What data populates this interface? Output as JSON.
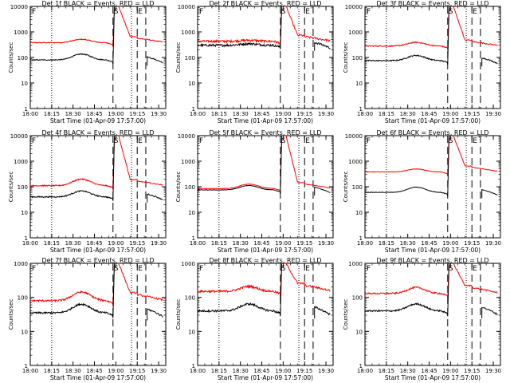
{
  "figure": {
    "x_tick_labels_row1": [
      "18:00",
      "18:15",
      "18:30",
      "18:45",
      "19:00",
      "19:15",
      "19:30"
    ],
    "x_tick_labels_row2": [
      "18:00",
      "18:15",
      "18:30",
      "18:45",
      "19:00",
      "19:15",
      "19:30"
    ],
    "x_tick_labels_row3": [
      "18:00",
      "18:15",
      "18:30",
      "18:45",
      "19:00",
      "19:15",
      "19:30"
    ],
    "y_tick_labels": [
      "1",
      "10",
      "100",
      "1000",
      "10000"
    ],
    "ylabel": "Counts/sec",
    "xlabel": "Start Time (01-Apr-09 17:57:00)",
    "marker_labels": {
      "left": "F",
      "mid": "S",
      "right": "E"
    },
    "colors": {
      "events": "#000000",
      "lld": "#ff0000"
    }
  },
  "chart_data": [
    {
      "type": "line",
      "detector": "1f",
      "title": "Det 1f BLACK = Events, RED = LLD",
      "xlabel": "Start Time (01-Apr-09 17:57:00)",
      "ylabel": "Counts/sec",
      "xlim": [
        "18:00",
        "19:35"
      ],
      "ylim": [
        1,
        10000
      ],
      "yscale": "log",
      "events_base": 80,
      "events_bump": 1.7,
      "lld_base": 380,
      "lld_bump": 1.35,
      "noise": 0.04,
      "series": [
        {
          "name": "Events",
          "color": "#000000"
        },
        {
          "name": "LLD",
          "color": "#ff0000"
        }
      ]
    },
    {
      "type": "line",
      "detector": "2f",
      "title": "Det 2f BLACK = Events, RED = LLD",
      "xlabel": "Start Time (01-Apr-09 17:57:00)",
      "ylabel": "Counts/sec",
      "xlim": [
        "18:00",
        "19:35"
      ],
      "ylim": [
        1,
        10000
      ],
      "yscale": "log",
      "events_base": 300,
      "events_bump": 1.15,
      "lld_base": 430,
      "lld_bump": 1.1,
      "noise": 0.1,
      "series": [
        {
          "name": "Events",
          "color": "#000000"
        },
        {
          "name": "LLD",
          "color": "#ff0000"
        }
      ]
    },
    {
      "type": "line",
      "detector": "3f",
      "title": "Det 3f BLACK = Events, RED = LLD",
      "xlabel": "Start Time (01-Apr-09 17:57:00)",
      "ylabel": "Counts/sec",
      "xlim": [
        "18:00",
        "19:35"
      ],
      "ylim": [
        1,
        10000
      ],
      "yscale": "log",
      "events_base": 75,
      "events_bump": 1.6,
      "lld_base": 280,
      "lld_bump": 1.4,
      "noise": 0.05,
      "series": [
        {
          "name": "Events",
          "color": "#000000"
        },
        {
          "name": "LLD",
          "color": "#ff0000"
        }
      ]
    },
    {
      "type": "line",
      "detector": "4f",
      "title": "Det 4f BLACK = Events, RED = LLD",
      "xlabel": "Start Time (01-Apr-09 17:57:00)",
      "ylabel": "Counts/sec",
      "xlim": [
        "18:00",
        "19:35"
      ],
      "ylim": [
        1,
        10000
      ],
      "yscale": "log",
      "events_base": 40,
      "events_bump": 1.7,
      "lld_base": 110,
      "lld_bump": 1.8,
      "noise": 0.05,
      "series": [
        {
          "name": "Events",
          "color": "#000000"
        },
        {
          "name": "LLD",
          "color": "#ff0000"
        }
      ]
    },
    {
      "type": "line",
      "detector": "5f",
      "title": "Det 5f BLACK = Events, RED = LLD",
      "xlabel": "Start Time (01-Apr-09 17:57:00)",
      "ylabel": "Counts/sec",
      "xlim": [
        "18:00",
        "19:35"
      ],
      "ylim": [
        1,
        10000
      ],
      "yscale": "log",
      "events_base": 75,
      "events_bump": 1.5,
      "lld_base": 85,
      "lld_bump": 1.5,
      "noise": 0.02,
      "series": [
        {
          "name": "Events",
          "color": "#000000"
        },
        {
          "name": "LLD",
          "color": "#ff0000"
        }
      ]
    },
    {
      "type": "line",
      "detector": "6f",
      "title": "Det 6f BLACK = Events, RED = LLD",
      "xlabel": "Start Time (01-Apr-09 17:57:00)",
      "ylabel": "Counts/sec",
      "xlim": [
        "18:00",
        "19:35"
      ],
      "ylim": [
        1,
        10000
      ],
      "yscale": "log",
      "events_base": 60,
      "events_bump": 1.6,
      "lld_base": 380,
      "lld_bump": 1.3,
      "noise": 0.02,
      "series": [
        {
          "name": "Events",
          "color": "#000000"
        },
        {
          "name": "LLD",
          "color": "#ff0000"
        }
      ]
    },
    {
      "type": "line",
      "detector": "7f",
      "title": "Det 7f BLACK = Events, RED = LLD",
      "xlabel": "Start Time (01-Apr-09 17:57:00)",
      "ylabel": "Counts/sec",
      "xlim": [
        "18:00",
        "19:35"
      ],
      "ylim": [
        1,
        1000
      ],
      "yscale": "log",
      "events_base": 35,
      "events_bump": 1.8,
      "lld_base": 80,
      "lld_bump": 1.8,
      "noise": 0.06,
      "series": [
        {
          "name": "Events",
          "color": "#000000"
        },
        {
          "name": "LLD",
          "color": "#ff0000"
        }
      ]
    },
    {
      "type": "line",
      "detector": "8f",
      "title": "Det 8f BLACK = Events, RED = LLD",
      "xlabel": "Start Time (01-Apr-09 17:57:00)",
      "ylabel": "Counts/sec",
      "xlim": [
        "18:00",
        "19:35"
      ],
      "ylim": [
        1,
        1000
      ],
      "yscale": "log",
      "events_base": 40,
      "events_bump": 1.6,
      "lld_base": 150,
      "lld_bump": 1.4,
      "noise": 0.07,
      "series": [
        {
          "name": "Events",
          "color": "#000000"
        },
        {
          "name": "LLD",
          "color": "#ff0000"
        }
      ]
    },
    {
      "type": "line",
      "detector": "9f",
      "title": "Det 9f BLACK = Events, RED = LLD",
      "xlabel": "Start Time (01-Apr-09 17:57:00)",
      "ylabel": "Counts/sec",
      "xlim": [
        "18:00",
        "19:35"
      ],
      "ylim": [
        1,
        1000
      ],
      "yscale": "log",
      "events_base": 40,
      "events_bump": 1.6,
      "lld_base": 130,
      "lld_bump": 1.5,
      "noise": 0.05,
      "series": [
        {
          "name": "Events",
          "color": "#000000"
        },
        {
          "name": "LLD",
          "color": "#ff0000"
        }
      ]
    }
  ]
}
